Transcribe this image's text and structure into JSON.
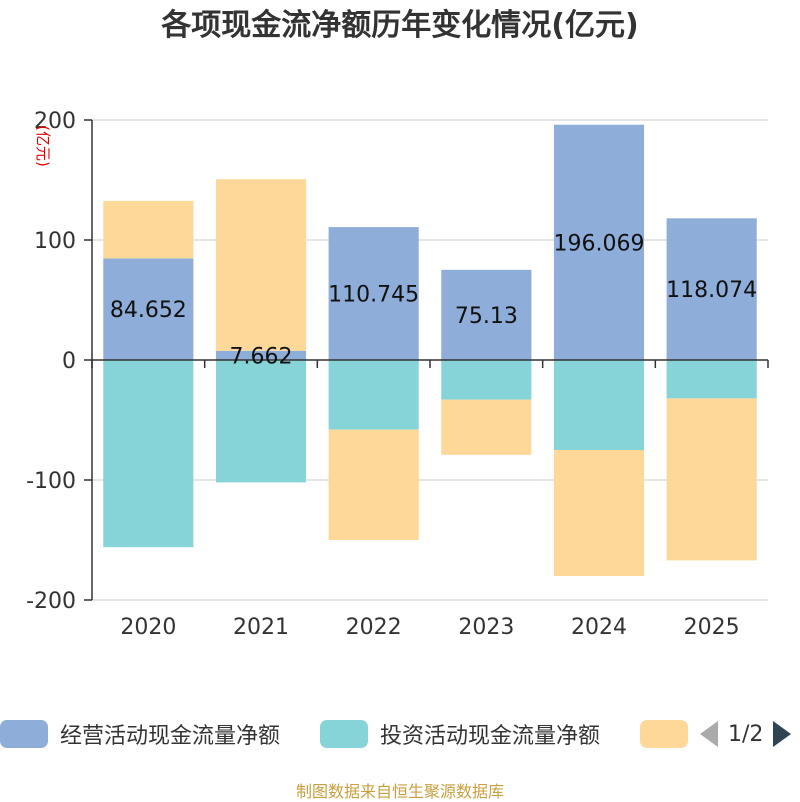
{
  "chart_data": {
    "type": "bar",
    "stacked": true,
    "title": "各项现金流净额历年变化情况(亿元)",
    "ylabel": "(亿元)",
    "categories": [
      "2020",
      "2021",
      "2022",
      "2023",
      "2024",
      "2025"
    ],
    "ylim": [
      -200,
      200
    ],
    "yticks": [
      200,
      100,
      0,
      -100,
      -200
    ],
    "grid": true,
    "series": [
      {
        "name": "经营活动现金流量净额",
        "color": "#8eadd9",
        "values": [
          84.652,
          7.662,
          110.745,
          75.13,
          196.069,
          118.074
        ],
        "labels": [
          "84.652",
          "7.662",
          "110.745",
          "75.13",
          "196.069",
          "118.074"
        ]
      },
      {
        "name": "投资活动现金流量净额",
        "color": "#86d4d8",
        "values": [
          -156,
          -102,
          -58,
          -33,
          -75,
          -32
        ]
      },
      {
        "name": "",
        "color": "#fed898",
        "values": [
          48,
          143,
          -92,
          -46,
          -105,
          -135
        ]
      }
    ]
  },
  "legend": {
    "item1": "经营活动现金流量净额",
    "item2": "投资活动现金流量净额",
    "pager": "1/2"
  },
  "footer": "制图数据来自恒生聚源数据库"
}
